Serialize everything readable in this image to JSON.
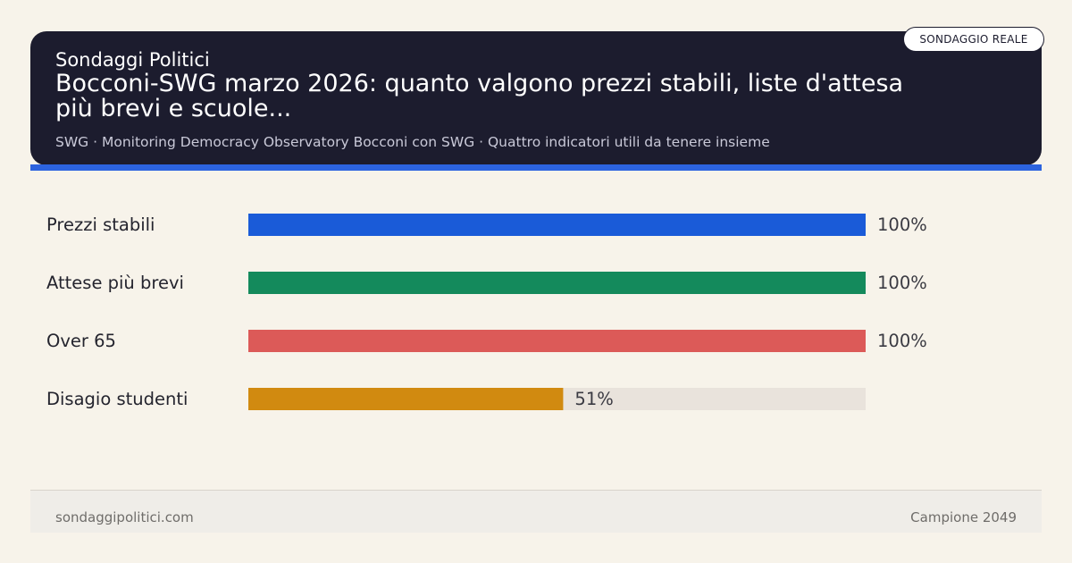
{
  "header": {
    "source": "Sondaggi Politici",
    "title": "Bocconi-SWG marzo 2026: quanto valgono prezzi stabili, liste d'attesa più brevi e scuole...",
    "subtitle": "SWG · Monitoring Democracy Observatory Bocconi con SWG · Quattro indicatori utili da tenere insieme",
    "badge": "SONDAGGIO REALE"
  },
  "colors": {
    "header_bg": "#1c1c2e",
    "accent": "#2c63df",
    "track": "#e9e3dc",
    "page_bg": "#f7f3ea"
  },
  "chart_data": {
    "type": "bar",
    "orientation": "horizontal",
    "categories": [
      "Prezzi stabili",
      "Attese più brevi",
      "Over 65",
      "Disagio studenti"
    ],
    "values": [
      100,
      100,
      100,
      51
    ],
    "value_labels": [
      "100%",
      "100%",
      "100%",
      "51%"
    ],
    "colors": [
      "#1a5bd8",
      "#148a5c",
      "#dc5a58",
      "#d18a10"
    ],
    "xlim": [
      0,
      100
    ],
    "grid": false,
    "title": "",
    "xlabel": "",
    "ylabel": ""
  },
  "footer": {
    "site": "sondaggipolitici.com",
    "sample": "Campione 2049"
  }
}
